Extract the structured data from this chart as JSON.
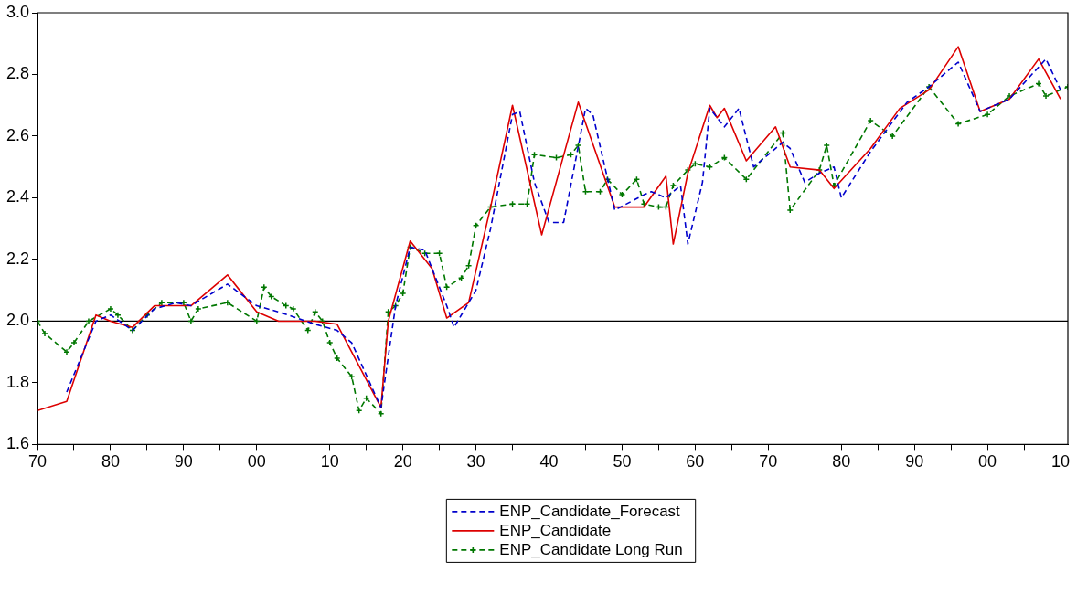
{
  "chart_data": {
    "type": "line",
    "xlim": [
      1870,
      2011
    ],
    "xticks": [
      {
        "value": 1870,
        "label": "70"
      },
      {
        "value": 1875,
        "label": null
      },
      {
        "value": 1880,
        "label": "80"
      },
      {
        "value": 1885,
        "label": null
      },
      {
        "value": 1890,
        "label": "90"
      },
      {
        "value": 1895,
        "label": null
      },
      {
        "value": 1900,
        "label": "00"
      },
      {
        "value": 1905,
        "label": null
      },
      {
        "value": 1910,
        "label": "10"
      },
      {
        "value": 1915,
        "label": null
      },
      {
        "value": 1920,
        "label": "20"
      },
      {
        "value": 1925,
        "label": null
      },
      {
        "value": 1930,
        "label": "30"
      },
      {
        "value": 1935,
        "label": null
      },
      {
        "value": 1940,
        "label": "40"
      },
      {
        "value": 1945,
        "label": null
      },
      {
        "value": 1950,
        "label": "50"
      },
      {
        "value": 1955,
        "label": null
      },
      {
        "value": 1960,
        "label": "60"
      },
      {
        "value": 1965,
        "label": null
      },
      {
        "value": 1970,
        "label": "70"
      },
      {
        "value": 1975,
        "label": null
      },
      {
        "value": 1980,
        "label": "80"
      },
      {
        "value": 1985,
        "label": null
      },
      {
        "value": 1990,
        "label": "90"
      },
      {
        "value": 1995,
        "label": null
      },
      {
        "value": 2000,
        "label": "00"
      },
      {
        "value": 2005,
        "label": null
      },
      {
        "value": 2010,
        "label": "10"
      }
    ],
    "ylim": [
      1.6,
      3.0
    ],
    "yticks": [
      {
        "value": 1.6,
        "label": "1.6"
      },
      {
        "value": 1.8,
        "label": "1.8"
      },
      {
        "value": 2.0,
        "label": "2.0"
      },
      {
        "value": 2.2,
        "label": "2.2"
      },
      {
        "value": 2.4,
        "label": "2.4"
      },
      {
        "value": 2.6,
        "label": "2.6"
      },
      {
        "value": 2.8,
        "label": "2.8"
      },
      {
        "value": 3.0,
        "label": "3.0"
      }
    ],
    "grid": false,
    "legend": "bottom",
    "ref_lines": [
      {
        "axis": "y",
        "value": 2.0,
        "color": "#000000"
      }
    ],
    "series": [
      {
        "name": "ENP_Candidate_Forecast",
        "color": "#0000cc",
        "line_style": "dashed",
        "marker": "none",
        "x": [
          1874,
          1878,
          1880,
          1883,
          1886,
          1889,
          1891,
          1896,
          1900,
          1903,
          1908,
          1911,
          1913,
          1917,
          1919,
          1921,
          1923,
          1926,
          1927,
          1930,
          1932,
          1935,
          1936,
          1938,
          1940,
          1942,
          1945,
          1946,
          1949,
          1953,
          1954,
          1956,
          1958,
          1959,
          1961,
          1962,
          1964,
          1966,
          1968,
          1972,
          1973,
          1975,
          1977,
          1979,
          1980,
          1984,
          1989,
          1992,
          1996,
          1999,
          2003,
          2008,
          2010
        ],
        "values": [
          1.77,
          2.0,
          2.02,
          1.97,
          2.04,
          2.06,
          2.05,
          2.12,
          2.05,
          2.03,
          1.99,
          1.97,
          1.93,
          1.72,
          2.05,
          2.24,
          2.23,
          2.05,
          1.98,
          2.1,
          2.3,
          2.67,
          2.68,
          2.45,
          2.32,
          2.32,
          2.69,
          2.67,
          2.36,
          2.41,
          2.42,
          2.4,
          2.44,
          2.25,
          2.45,
          2.69,
          2.63,
          2.69,
          2.5,
          2.58,
          2.56,
          2.45,
          2.48,
          2.5,
          2.4,
          2.55,
          2.71,
          2.76,
          2.84,
          2.68,
          2.72,
          2.85,
          2.75
        ]
      },
      {
        "name": "ENP_Candidate",
        "color": "#dd0000",
        "line_style": "solid",
        "marker": "none",
        "x": [
          1870,
          1874,
          1878,
          1880,
          1883,
          1886,
          1891,
          1896,
          1900,
          1903,
          1908,
          1911,
          1917,
          1918,
          1921,
          1924,
          1926,
          1929,
          1932,
          1935,
          1939,
          1944,
          1949,
          1953,
          1956,
          1957,
          1959,
          1962,
          1963,
          1964,
          1967,
          1971,
          1973,
          1977,
          1979,
          1984,
          1988,
          1992,
          1996,
          1999,
          2003,
          2007,
          2010
        ],
        "values": [
          1.71,
          1.74,
          2.02,
          2.0,
          1.98,
          2.05,
          2.05,
          2.15,
          2.03,
          2.0,
          2.0,
          1.99,
          1.72,
          2.0,
          2.26,
          2.17,
          2.01,
          2.06,
          2.37,
          2.7,
          2.28,
          2.71,
          2.37,
          2.37,
          2.47,
          2.25,
          2.48,
          2.7,
          2.66,
          2.69,
          2.52,
          2.63,
          2.5,
          2.49,
          2.43,
          2.56,
          2.69,
          2.75,
          2.89,
          2.68,
          2.72,
          2.85,
          2.72
        ]
      },
      {
        "name": "ENP_Candidate Long Run",
        "color": "#007700",
        "line_style": "dashed",
        "marker": "cross",
        "x": [
          1870,
          1871,
          1874,
          1875,
          1877,
          1880,
          1881,
          1883,
          1885,
          1887,
          1890,
          1891,
          1892,
          1896,
          1900,
          1901,
          1902,
          1904,
          1905,
          1907,
          1908,
          1909,
          1910,
          1911,
          1913,
          1914,
          1915,
          1917,
          1918,
          1919,
          1920,
          1921,
          1923,
          1925,
          1926,
          1928,
          1929,
          1930,
          1932,
          1935,
          1937,
          1938,
          1941,
          1943,
          1944,
          1945,
          1947,
          1948,
          1950,
          1952,
          1953,
          1955,
          1956,
          1957,
          1959,
          1960,
          1962,
          1964,
          1967,
          1972,
          1973,
          1977,
          1978,
          1979,
          1984,
          1987,
          1992,
          1996,
          2000,
          2003,
          2007,
          2008,
          2011
        ],
        "values": [
          2.0,
          1.96,
          1.9,
          1.93,
          2.0,
          2.04,
          2.02,
          1.97,
          2.02,
          2.06,
          2.06,
          2.0,
          2.04,
          2.06,
          2.0,
          2.11,
          2.08,
          2.05,
          2.04,
          1.97,
          2.03,
          2.0,
          1.93,
          1.88,
          1.82,
          1.71,
          1.75,
          1.7,
          2.03,
          2.05,
          2.09,
          2.24,
          2.22,
          2.22,
          2.11,
          2.14,
          2.18,
          2.31,
          2.37,
          2.38,
          2.38,
          2.54,
          2.53,
          2.54,
          2.57,
          2.42,
          2.42,
          2.46,
          2.41,
          2.46,
          2.38,
          2.37,
          2.37,
          2.44,
          2.49,
          2.51,
          2.5,
          2.53,
          2.46,
          2.61,
          2.36,
          2.49,
          2.57,
          2.44,
          2.65,
          2.6,
          2.76,
          2.64,
          2.67,
          2.73,
          2.77,
          2.73,
          2.76
        ]
      }
    ]
  }
}
